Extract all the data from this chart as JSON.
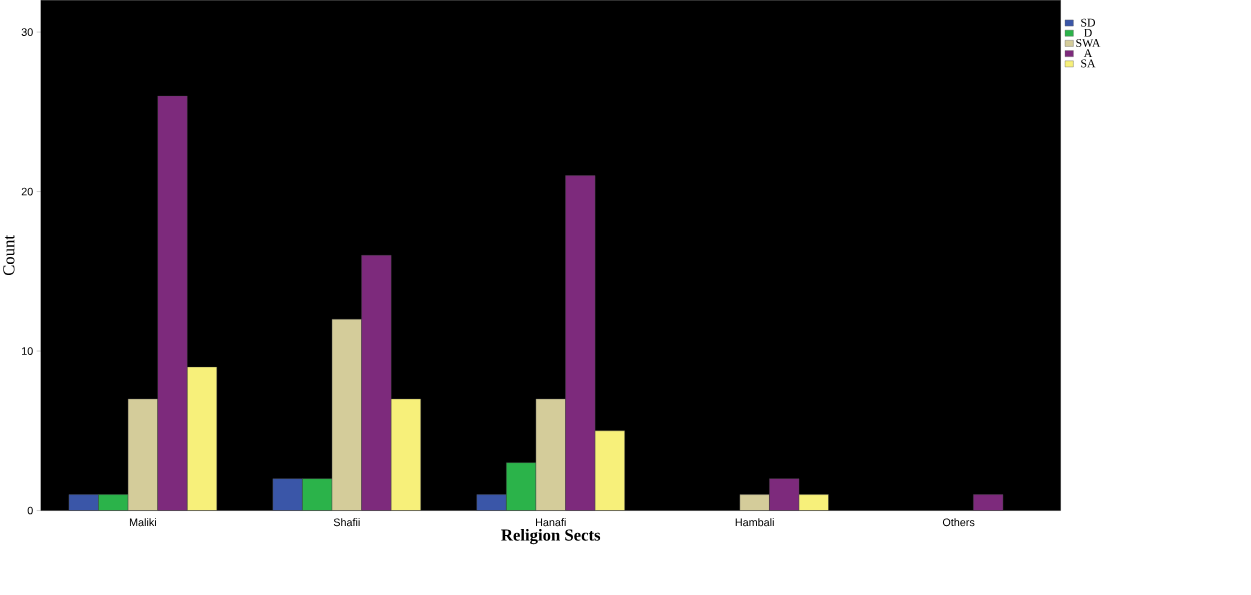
{
  "chart_data": {
    "type": "bar",
    "xlabel": "Religion Sects",
    "ylabel": "Count",
    "categories": [
      "Maliki",
      "Shafii",
      "Hanafi",
      "Hambali",
      "Others"
    ],
    "series": [
      {
        "name": "SD",
        "color": "#3a56a8",
        "values": [
          1,
          2,
          1,
          null,
          null
        ]
      },
      {
        "name": "D",
        "color": "#2bb34a",
        "values": [
          1,
          2,
          3,
          null,
          null
        ]
      },
      {
        "name": "SWA",
        "color": "#d4cc9a",
        "values": [
          7,
          12,
          7,
          1,
          null
        ]
      },
      {
        "name": "A",
        "color": "#7d2a7c",
        "values": [
          26,
          16,
          21,
          2,
          1
        ]
      },
      {
        "name": "SA",
        "color": "#f7f07a",
        "values": [
          9,
          7,
          5,
          1,
          null
        ]
      }
    ],
    "ylim": [
      0,
      32
    ],
    "yticks": [
      0,
      10,
      20,
      30
    ],
    "grid": false,
    "legend": "top right"
  }
}
